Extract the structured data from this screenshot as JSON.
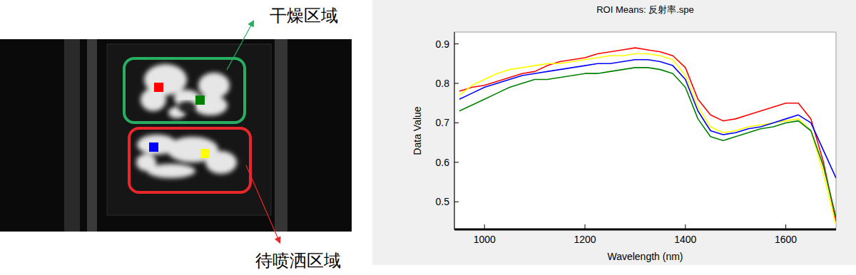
{
  "chart_data": {
    "type": "line",
    "title": "ROI Means: 反射率.spe",
    "x_label": "Wavelength (nm)",
    "y_label": "Data Value",
    "x": [
      950,
      975,
      1000,
      1025,
      1050,
      1075,
      1100,
      1125,
      1150,
      1175,
      1200,
      1225,
      1250,
      1275,
      1300,
      1325,
      1350,
      1375,
      1400,
      1425,
      1450,
      1475,
      1500,
      1525,
      1550,
      1575,
      1600,
      1625,
      1650,
      1675,
      1700
    ],
    "series": [
      {
        "color": "#ff0000",
        "values": [
          0.78,
          0.79,
          0.795,
          0.805,
          0.815,
          0.825,
          0.83,
          0.845,
          0.855,
          0.86,
          0.865,
          0.875,
          0.88,
          0.885,
          0.89,
          0.885,
          0.88,
          0.87,
          0.84,
          0.76,
          0.72,
          0.705,
          0.71,
          0.72,
          0.73,
          0.74,
          0.75,
          0.75,
          0.71,
          0.6,
          0.45
        ]
      },
      {
        "color": "#ffff00",
        "values": [
          0.77,
          0.795,
          0.81,
          0.825,
          0.835,
          0.84,
          0.845,
          0.85,
          0.85,
          0.855,
          0.86,
          0.865,
          0.87,
          0.87,
          0.875,
          0.875,
          0.87,
          0.86,
          0.82,
          0.74,
          0.69,
          0.675,
          0.68,
          0.69,
          0.695,
          0.7,
          0.705,
          0.71,
          0.68,
          0.57,
          0.44
        ]
      },
      {
        "color": "#0000ff",
        "values": [
          0.76,
          0.775,
          0.79,
          0.8,
          0.81,
          0.82,
          0.825,
          0.83,
          0.835,
          0.84,
          0.845,
          0.85,
          0.85,
          0.855,
          0.86,
          0.86,
          0.855,
          0.845,
          0.81,
          0.73,
          0.68,
          0.67,
          0.675,
          0.685,
          0.69,
          0.7,
          0.71,
          0.72,
          0.7,
          0.63,
          0.56
        ]
      },
      {
        "color": "#008000",
        "values": [
          0.73,
          0.745,
          0.76,
          0.775,
          0.79,
          0.8,
          0.81,
          0.81,
          0.815,
          0.82,
          0.825,
          0.825,
          0.83,
          0.835,
          0.84,
          0.84,
          0.835,
          0.825,
          0.79,
          0.71,
          0.665,
          0.655,
          0.665,
          0.675,
          0.685,
          0.69,
          0.7,
          0.705,
          0.68,
          0.59,
          0.46
        ]
      }
    ],
    "xlim": [
      940,
      1700
    ],
    "xticks": [
      1000,
      1200,
      1400,
      1600
    ],
    "ylim": [
      0.43,
      0.93
    ],
    "yticks": [
      0.5,
      0.6,
      0.7,
      0.8,
      0.9
    ],
    "grid": false
  },
  "image": {
    "regions": [
      {
        "label": "干燥区域",
        "color": "#27ae60"
      },
      {
        "label": "待喷洒区域",
        "color": "#e8262b"
      }
    ]
  }
}
